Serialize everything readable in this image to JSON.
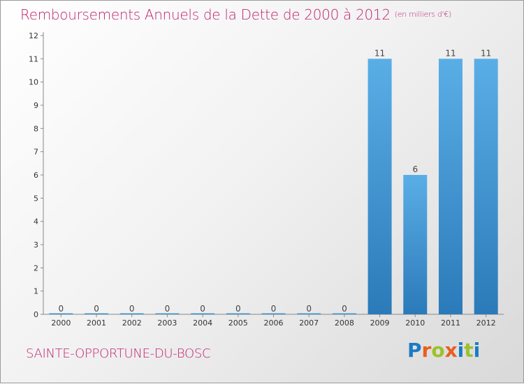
{
  "chart_data": {
    "type": "bar",
    "title": "Remboursements Annuels de la Dette de 2000 à 2012",
    "unit_note": "(en milliers d'€)",
    "categories": [
      "2000",
      "2001",
      "2002",
      "2003",
      "2004",
      "2005",
      "2006",
      "2007",
      "2008",
      "2009",
      "2010",
      "2011",
      "2012"
    ],
    "values": [
      0,
      0,
      0,
      0,
      0,
      0,
      0,
      0,
      0,
      11,
      6,
      11,
      11
    ],
    "value_labels": [
      "0",
      "0",
      "0",
      "0",
      "0",
      "0",
      "0",
      "0",
      "0",
      "11",
      "6",
      "11",
      "11"
    ],
    "ylim": [
      0,
      12
    ],
    "yticks": [
      "0",
      "1",
      "2",
      "3",
      "4",
      "5",
      "6",
      "7",
      "8",
      "9",
      "10",
      "11",
      "12"
    ],
    "xlabel": "",
    "ylabel": "",
    "bar_color_top": "#5aaee6",
    "bar_color_bottom": "#2b7ab9"
  },
  "footer": {
    "commune": "SAINTE-OPPORTUNE-DU-BOSC",
    "brand_letters": [
      "P",
      "r",
      "o",
      "x",
      "i",
      "t",
      "i"
    ]
  }
}
